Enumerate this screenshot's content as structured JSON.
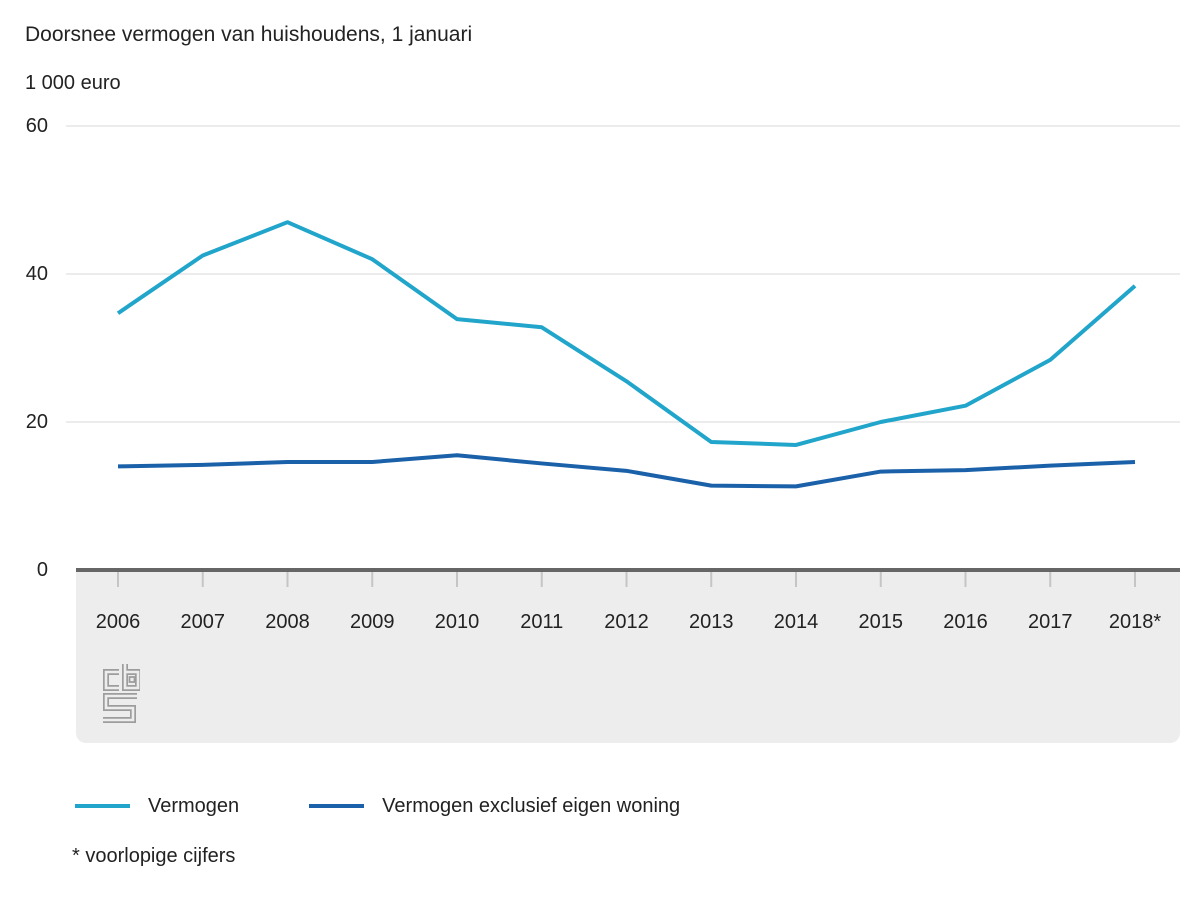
{
  "footnote": "* voorlopige cijfers",
  "colors": {
    "panel_background": "#ededed",
    "axis_line": "#666666",
    "gridline": "#d9d9d9",
    "tick": "#c5c5c5",
    "text": "#222222",
    "logo_gray": "#9d9d9d",
    "series_light_blue": "#21a5cb",
    "series_dark_blue": "#1b61a9"
  },
  "chart_data": {
    "type": "line",
    "title": "Doorsnee vermogen van huishoudens, 1 januari",
    "ylabel": "1 000 euro",
    "xlabel": "",
    "x_categories": [
      "2006",
      "2007",
      "2008",
      "2009",
      "2010",
      "2011",
      "2012",
      "2013",
      "2014",
      "2015",
      "2016",
      "2017",
      "2018*"
    ],
    "y_ticks": [
      0,
      20,
      40,
      60
    ],
    "ylim": [
      0,
      60
    ],
    "grid": "horizontal",
    "legend_position": "bottom",
    "series": [
      {
        "name": "Vermogen",
        "color": "#21a5cb",
        "values": [
          34.7,
          42.5,
          47.0,
          42.0,
          33.9,
          32.8,
          25.5,
          17.3,
          16.9,
          20.0,
          22.2,
          28.4,
          38.4
        ]
      },
      {
        "name": "Vermogen exclusief eigen woning",
        "color": "#1b61a9",
        "values": [
          14.0,
          14.2,
          14.6,
          14.6,
          15.5,
          14.4,
          13.4,
          11.4,
          11.3,
          13.3,
          13.5,
          14.1,
          14.6
        ]
      }
    ]
  }
}
